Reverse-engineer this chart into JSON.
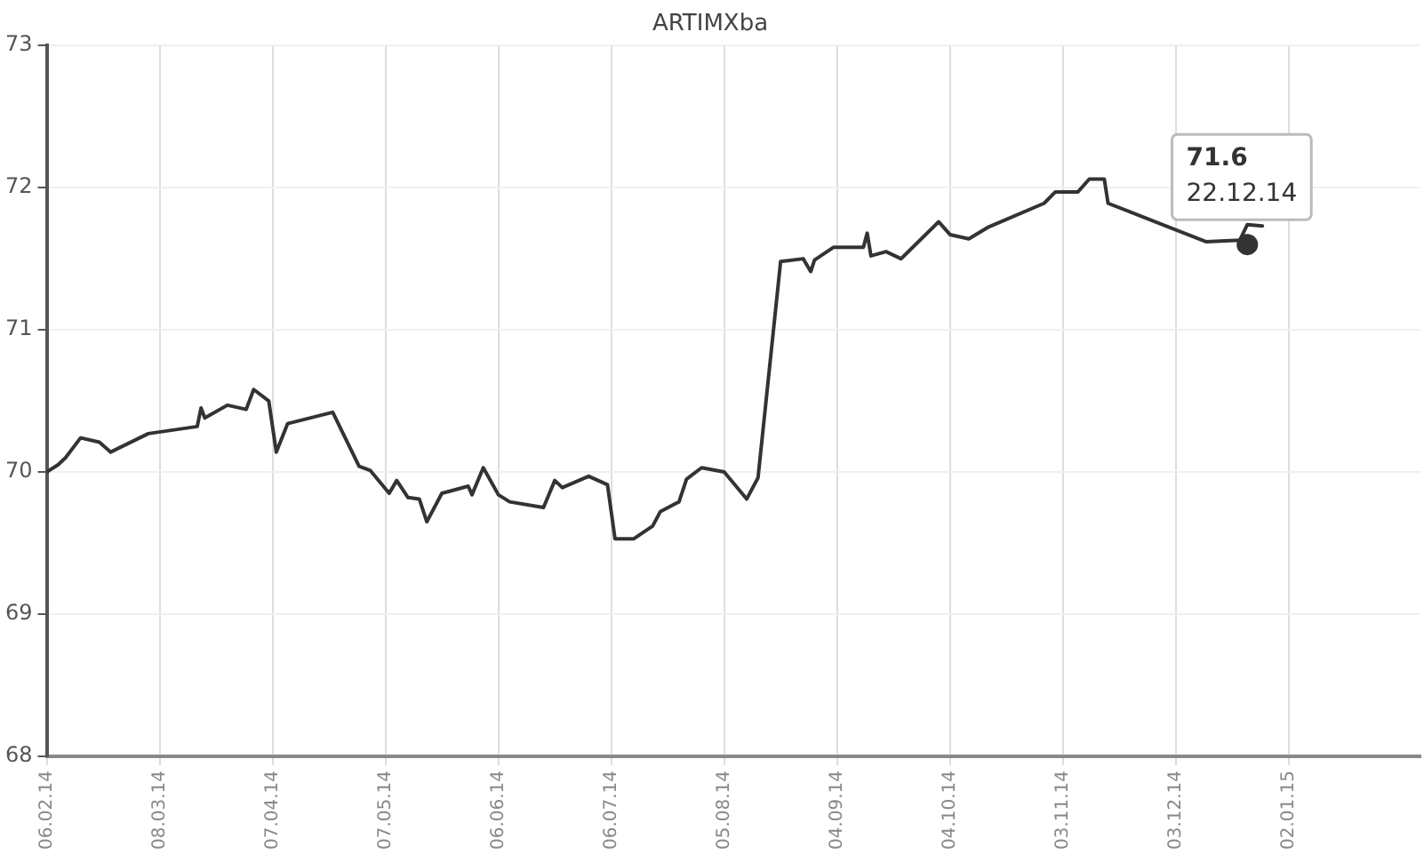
{
  "chart_data": {
    "type": "line",
    "title": "ARTIMXba",
    "x": [
      "2014-02-06",
      "2014-02-09",
      "2014-02-11",
      "2014-02-15",
      "2014-02-20",
      "2014-02-23",
      "2014-03-05",
      "2014-03-18",
      "2014-03-19",
      "2014-03-20",
      "2014-03-26",
      "2014-03-31",
      "2014-04-02",
      "2014-04-06",
      "2014-04-08",
      "2014-04-11",
      "2014-04-23",
      "2014-04-30",
      "2014-05-03",
      "2014-05-08",
      "2014-05-10",
      "2014-05-13",
      "2014-05-16",
      "2014-05-18",
      "2014-05-22",
      "2014-05-29",
      "2014-05-30",
      "2014-06-02",
      "2014-06-06",
      "2014-06-09",
      "2014-06-18",
      "2014-06-21",
      "2014-06-23",
      "2014-06-30",
      "2014-07-05",
      "2014-07-07",
      "2014-07-12",
      "2014-07-17",
      "2014-07-19",
      "2014-07-24",
      "2014-07-26",
      "2014-07-30",
      "2014-08-05",
      "2014-08-11",
      "2014-08-14",
      "2014-08-20",
      "2014-08-26",
      "2014-08-28",
      "2014-08-29",
      "2014-09-03",
      "2014-09-11",
      "2014-09-12",
      "2014-09-13",
      "2014-09-17",
      "2014-09-21",
      "2014-10-01",
      "2014-10-04",
      "2014-10-09",
      "2014-10-14",
      "2014-10-29",
      "2014-11-01",
      "2014-11-07",
      "2014-11-10",
      "2014-11-14",
      "2014-11-15",
      "2014-12-11",
      "2014-12-20",
      "2014-12-22",
      "2014-12-26"
    ],
    "series": [
      {
        "color": "#333333",
        "values": [
          70.0,
          70.05,
          70.1,
          70.24,
          70.21,
          70.14,
          70.27,
          70.32,
          70.45,
          70.38,
          70.47,
          70.44,
          70.58,
          70.5,
          70.14,
          70.34,
          70.42,
          70.04,
          70.01,
          69.85,
          69.94,
          69.82,
          69.81,
          69.65,
          69.85,
          69.9,
          69.84,
          70.03,
          69.84,
          69.79,
          69.75,
          69.94,
          69.89,
          69.97,
          69.91,
          69.53,
          69.53,
          69.62,
          69.72,
          69.79,
          69.95,
          70.03,
          70.0,
          69.81,
          69.96,
          71.48,
          71.5,
          71.41,
          71.49,
          71.58,
          71.58,
          71.68,
          71.52,
          71.55,
          71.5,
          71.76,
          71.67,
          71.64,
          71.72,
          71.89,
          71.97,
          71.97,
          72.06,
          72.06,
          71.89,
          71.62,
          71.63,
          71.74,
          71.73
        ]
      }
    ],
    "xlim": [
      "2014-02-06",
      "2015-02-06"
    ],
    "xticks": [
      {
        "value": "2014-02-06",
        "label": "06.02.14"
      },
      {
        "value": "2014-03-08",
        "label": "08.03.14"
      },
      {
        "value": "2014-04-07",
        "label": "07.04.14"
      },
      {
        "value": "2014-05-07",
        "label": "07.05.14"
      },
      {
        "value": "2014-06-06",
        "label": "06.06.14"
      },
      {
        "value": "2014-07-06",
        "label": "06.07.14"
      },
      {
        "value": "2014-08-05",
        "label": "05.08.14"
      },
      {
        "value": "2014-09-04",
        "label": "04.09.14"
      },
      {
        "value": "2014-10-04",
        "label": "04.10.14"
      },
      {
        "value": "2014-11-03",
        "label": "03.11.14"
      },
      {
        "value": "2014-12-03",
        "label": "03.12.14"
      },
      {
        "value": "2015-01-02",
        "label": "02.01.15"
      }
    ],
    "ylim": [
      68,
      73
    ],
    "yticks": [
      68,
      69,
      70,
      71,
      72,
      73
    ],
    "grid": true,
    "marker": "none",
    "line_style": "solid",
    "legend": false,
    "annotations": [
      {
        "text": "71.6\n22.12.14",
        "x": "2014-12-22",
        "y": 71.6
      }
    ]
  }
}
